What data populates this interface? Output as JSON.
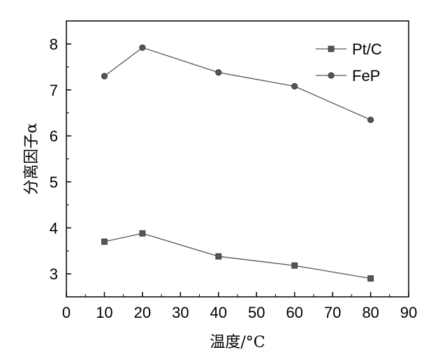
{
  "chart_data": {
    "type": "line",
    "title": "",
    "xlabel": "温度/°C",
    "ylabel": "分离因子α",
    "xlim": [
      0,
      90
    ],
    "ylim": [
      2.5,
      8.5
    ],
    "xticks": [
      0,
      10,
      20,
      30,
      40,
      50,
      60,
      70,
      80,
      90
    ],
    "yticks": [
      3,
      4,
      5,
      6,
      7,
      8
    ],
    "grid": false,
    "legend_position": "top-right",
    "series": [
      {
        "name": "Pt/C",
        "marker": "square",
        "x": [
          10,
          20,
          40,
          60,
          80
        ],
        "y": [
          3.7,
          3.88,
          3.38,
          3.18,
          2.9
        ]
      },
      {
        "name": "FeP",
        "marker": "circle",
        "x": [
          10,
          20,
          40,
          60,
          80
        ],
        "y": [
          7.3,
          7.92,
          7.38,
          7.08,
          6.35
        ]
      }
    ],
    "colors": {
      "line": "#555555",
      "marker": "#555555",
      "axis": "#000000"
    }
  }
}
